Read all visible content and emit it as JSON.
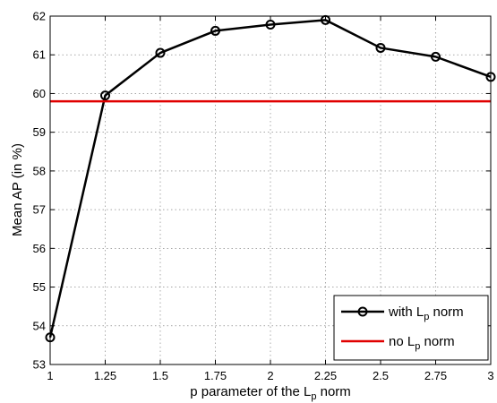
{
  "chart_data": {
    "type": "line",
    "xlabel": "p parameter of the L",
    "xlabel_sub": "p",
    "xlabel_suffix": " norm",
    "ylabel": "Mean AP (in %)",
    "xlim": [
      1,
      3
    ],
    "ylim": [
      53,
      62
    ],
    "x_ticks": [
      1,
      1.25,
      1.5,
      1.75,
      2,
      2.25,
      2.5,
      2.75,
      3
    ],
    "x_tick_labels": [
      "1",
      "1.25",
      "1.5",
      "1.75",
      "2",
      "2.25",
      "2.5",
      "2.75",
      "3"
    ],
    "y_ticks": [
      53,
      54,
      55,
      56,
      57,
      58,
      59,
      60,
      61,
      62
    ],
    "y_tick_labels": [
      "53",
      "54",
      "55",
      "56",
      "57",
      "58",
      "59",
      "60",
      "61",
      "62"
    ],
    "grid": true,
    "legend_position": "bottom-right",
    "series": [
      {
        "name": "with L",
        "name_sub": "p",
        "name_suffix": " norm",
        "color": "#000000",
        "marker": "circle",
        "x": [
          1,
          1.25,
          1.5,
          1.75,
          2,
          2.25,
          2.5,
          2.75,
          3
        ],
        "y": [
          53.7,
          59.95,
          61.05,
          61.62,
          61.78,
          61.9,
          61.18,
          60.95,
          60.43
        ]
      },
      {
        "name": "no L",
        "name_sub": "p",
        "name_suffix": " norm",
        "color": "#e00000",
        "marker": "none",
        "x": [
          1,
          3
        ],
        "y": [
          59.8,
          59.8
        ]
      }
    ]
  }
}
